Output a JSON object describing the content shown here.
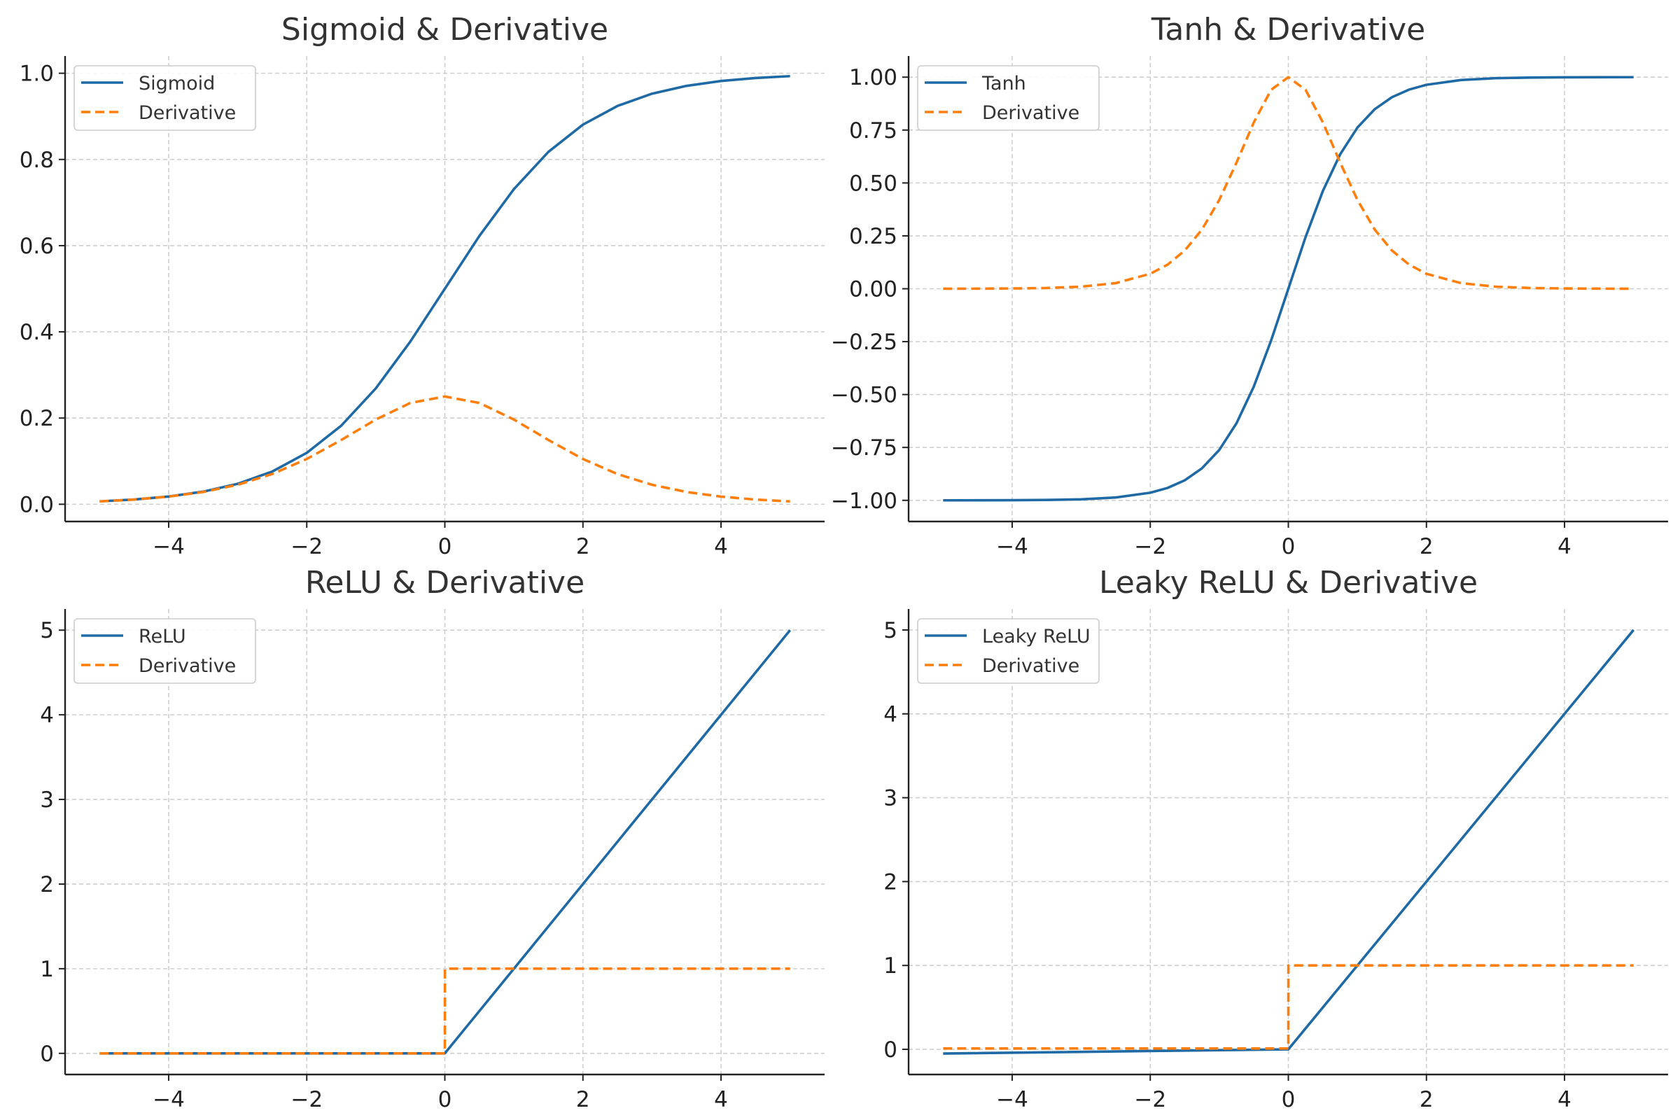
{
  "colors": {
    "primary": "#1f6aa5",
    "derivative": "#ff7f0e",
    "grid": "#cfcfcf",
    "axis": "#222222"
  },
  "chart_data": [
    {
      "type": "line",
      "title": "Sigmoid & Derivative",
      "xlabel": "",
      "ylabel": "",
      "xlim": [
        -5.5,
        5.5
      ],
      "ylim": [
        -0.04,
        1.04
      ],
      "xticks": [
        -4,
        -2,
        0,
        2,
        4
      ],
      "xtick_labels": [
        "−4",
        "−2",
        "0",
        "2",
        "4"
      ],
      "yticks": [
        0,
        0.2,
        0.4,
        0.6,
        0.8,
        1.0
      ],
      "ytick_labels": [
        "0.0",
        "0.2",
        "0.4",
        "0.6",
        "0.8",
        "1.0"
      ],
      "grid": true,
      "legend_position": "top-left",
      "x": [
        -5,
        -4.5,
        -4,
        -3.5,
        -3,
        -2.5,
        -2,
        -1.5,
        -1,
        -0.5,
        0,
        0.5,
        1,
        1.5,
        2,
        2.5,
        3,
        3.5,
        4,
        4.5,
        5
      ],
      "series": [
        {
          "name": "Sigmoid",
          "style": "solid",
          "values": [
            0.0067,
            0.011,
            0.018,
            0.0293,
            0.0474,
            0.0759,
            0.1192,
            0.1824,
            0.2689,
            0.3775,
            0.5,
            0.6225,
            0.7311,
            0.8176,
            0.8808,
            0.9241,
            0.9526,
            0.9707,
            0.982,
            0.989,
            0.9933
          ]
        },
        {
          "name": "Derivative",
          "style": "dashed",
          "values": [
            0.0066,
            0.0109,
            0.0177,
            0.0285,
            0.0452,
            0.0701,
            0.105,
            0.1491,
            0.1966,
            0.235,
            0.25,
            0.235,
            0.1966,
            0.1491,
            0.105,
            0.0701,
            0.0452,
            0.0285,
            0.0177,
            0.0109,
            0.0066
          ]
        }
      ]
    },
    {
      "type": "line",
      "title": "Tanh & Derivative",
      "xlabel": "",
      "ylabel": "",
      "xlim": [
        -5.5,
        5.5
      ],
      "ylim": [
        -1.1,
        1.1
      ],
      "xticks": [
        -4,
        -2,
        0,
        2,
        4
      ],
      "xtick_labels": [
        "−4",
        "−2",
        "0",
        "2",
        "4"
      ],
      "yticks": [
        -1.0,
        -0.75,
        -0.5,
        -0.25,
        0,
        0.25,
        0.5,
        0.75,
        1.0
      ],
      "ytick_labels": [
        "−1.00",
        "−0.75",
        "−0.50",
        "−0.25",
        "0.00",
        "0.25",
        "0.50",
        "0.75",
        "1.00"
      ],
      "grid": true,
      "legend_position": "top-left",
      "x": [
        -5,
        -4.5,
        -4,
        -3.5,
        -3,
        -2.5,
        -2,
        -1.75,
        -1.5,
        -1.25,
        -1,
        -0.75,
        -0.5,
        -0.25,
        0,
        0.25,
        0.5,
        0.75,
        1,
        1.25,
        1.5,
        1.75,
        2,
        2.5,
        3,
        3.5,
        4,
        4.5,
        5
      ],
      "series": [
        {
          "name": "Tanh",
          "style": "solid",
          "values": [
            -0.9999,
            -0.9998,
            -0.9993,
            -0.9982,
            -0.9951,
            -0.9866,
            -0.964,
            -0.9414,
            -0.9051,
            -0.8483,
            -0.7616,
            -0.6351,
            -0.4621,
            -0.2449,
            0,
            0.2449,
            0.4621,
            0.6351,
            0.7616,
            0.8483,
            0.9051,
            0.9414,
            0.964,
            0.9866,
            0.9951,
            0.9982,
            0.9993,
            0.9998,
            0.9999
          ]
        },
        {
          "name": "Derivative",
          "style": "dashed",
          "values": [
            0.0002,
            0.0005,
            0.0013,
            0.0036,
            0.0099,
            0.0266,
            0.0707,
            0.1138,
            0.1807,
            0.2804,
            0.42,
            0.5966,
            0.7864,
            0.94,
            1.0,
            0.94,
            0.7864,
            0.5966,
            0.42,
            0.2804,
            0.1807,
            0.1138,
            0.0707,
            0.0266,
            0.0099,
            0.0036,
            0.0013,
            0.0005,
            0.0002
          ]
        }
      ]
    },
    {
      "type": "line",
      "title": "ReLU & Derivative",
      "xlabel": "",
      "ylabel": "",
      "xlim": [
        -5.5,
        5.5
      ],
      "ylim": [
        -0.25,
        5.25
      ],
      "xticks": [
        -4,
        -2,
        0,
        2,
        4
      ],
      "xtick_labels": [
        "−4",
        "−2",
        "0",
        "2",
        "4"
      ],
      "yticks": [
        0,
        1,
        2,
        3,
        4,
        5
      ],
      "ytick_labels": [
        "0",
        "1",
        "2",
        "3",
        "4",
        "5"
      ],
      "grid": true,
      "legend_position": "top-left",
      "x": [
        -5,
        -0.001,
        0,
        0.001,
        5
      ],
      "series": [
        {
          "name": "ReLU",
          "style": "solid",
          "values": [
            0,
            0,
            0,
            0.001,
            5
          ]
        },
        {
          "name": "Derivative",
          "style": "dashed",
          "values": [
            0,
            0,
            0,
            1,
            1
          ]
        }
      ]
    },
    {
      "type": "line",
      "title": "Leaky ReLU & Derivative",
      "xlabel": "",
      "ylabel": "",
      "xlim": [
        -5.5,
        5.5
      ],
      "ylim": [
        -0.3,
        5.25
      ],
      "xticks": [
        -4,
        -2,
        0,
        2,
        4
      ],
      "xtick_labels": [
        "−4",
        "−2",
        "0",
        "2",
        "4"
      ],
      "yticks": [
        0,
        1,
        2,
        3,
        4,
        5
      ],
      "ytick_labels": [
        "0",
        "1",
        "2",
        "3",
        "4",
        "5"
      ],
      "grid": true,
      "legend_position": "top-left",
      "x": [
        -5,
        -0.001,
        0,
        0.001,
        5
      ],
      "series": [
        {
          "name": "Leaky ReLU",
          "style": "solid",
          "values": [
            -0.05,
            0,
            0,
            0.001,
            5
          ]
        },
        {
          "name": "Derivative",
          "style": "dashed",
          "values": [
            0.01,
            0.01,
            0.01,
            1,
            1
          ]
        }
      ]
    }
  ]
}
